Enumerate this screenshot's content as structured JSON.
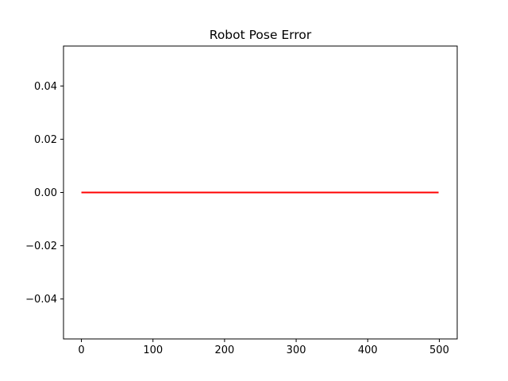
{
  "chart_data": {
    "type": "line",
    "title": "Robot Pose Error",
    "xlabel": "",
    "ylabel": "",
    "xlim": [
      -25,
      525
    ],
    "ylim": [
      -0.055,
      0.055
    ],
    "xticks": [
      0,
      100,
      200,
      300,
      400,
      500
    ],
    "xtick_labels": [
      "0",
      "100",
      "200",
      "300",
      "400",
      "500"
    ],
    "yticks": [
      -0.04,
      -0.02,
      0.0,
      0.02,
      0.04
    ],
    "ytick_labels": [
      "−0.04",
      "−0.02",
      "0.00",
      "0.02",
      "0.04"
    ],
    "grid": false,
    "series": [
      {
        "color": "#ff0000",
        "x": [
          0,
          499
        ],
        "y": [
          0.0,
          0.0
        ]
      }
    ]
  }
}
